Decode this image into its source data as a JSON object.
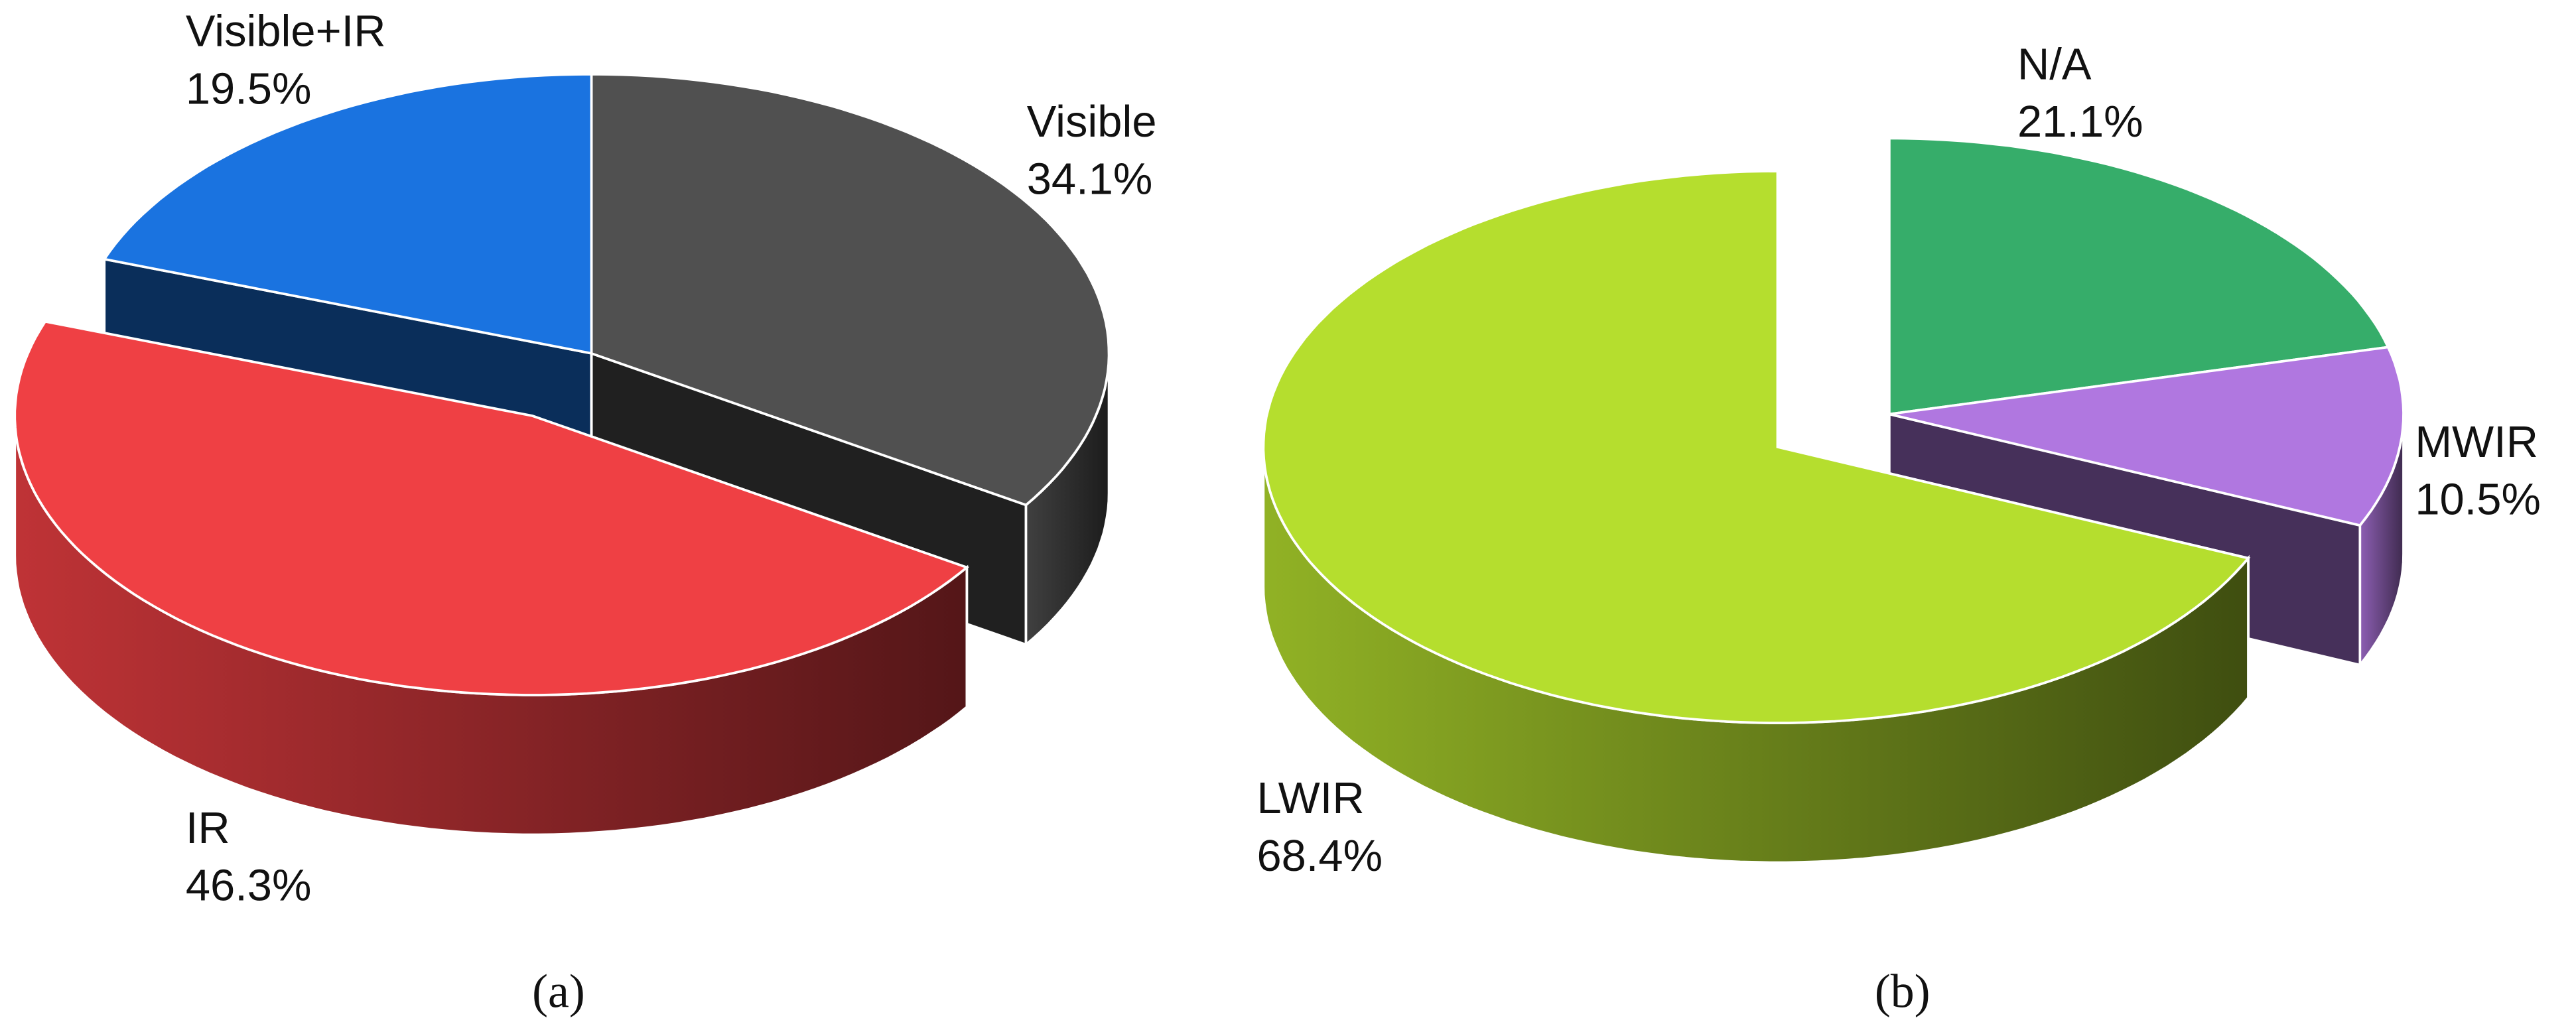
{
  "chart_data": [
    {
      "type": "pie",
      "caption": "(a)",
      "categories": [
        "Visible",
        "IR",
        "Visible+IR"
      ],
      "values": [
        34.1,
        46.3,
        19.5
      ],
      "value_labels": [
        "34.1%",
        "46.3%",
        "19.5%"
      ],
      "colors": [
        "#505050",
        "#ef4044",
        "#1a73e0"
      ]
    },
    {
      "type": "pie",
      "caption": "(b)",
      "categories": [
        "N/A",
        "MWIR",
        "LWIR"
      ],
      "values": [
        21.1,
        10.5,
        68.4
      ],
      "value_labels": [
        "21.1%",
        "10.5%",
        "68.4%"
      ],
      "colors": [
        "#36ad6a",
        "#b077e0",
        "#b5de2e"
      ]
    }
  ]
}
